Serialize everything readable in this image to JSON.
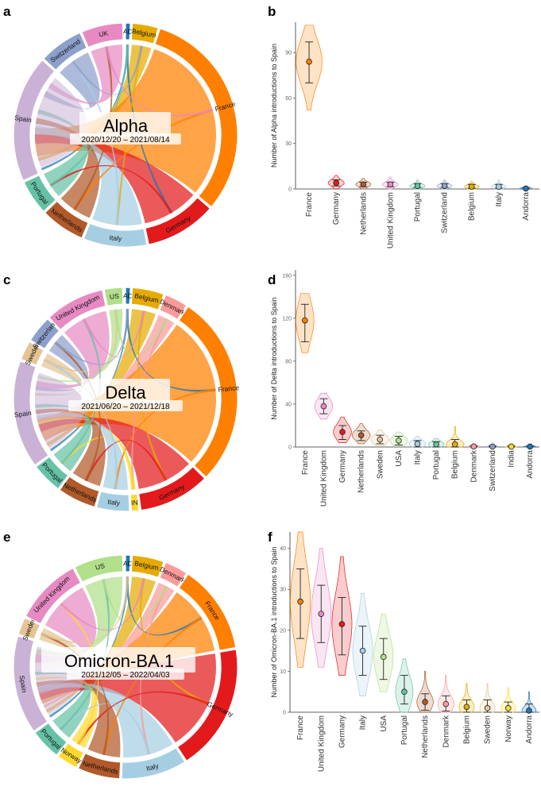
{
  "colors": {
    "France": "#ff7f00",
    "Germany": "#e31a1c",
    "Italy": "#a6cee3",
    "Netherlands": "#b15928",
    "Portugal": "#66c2a5",
    "Spain": "#cab2d6",
    "Switzerland": "#8da0cb",
    "UK": "#e78ac3",
    "United Kingdom": "#e78ac3",
    "Andorra": "#1f78b4",
    "Belgium": "#e6ab02",
    "USA": "#b2df8a",
    "Sweden": "#e5c494",
    "Denmark": "#fb9a99",
    "India": "#ffd92f",
    "Norway": "#ffd92f"
  },
  "chart_data": [
    {
      "panel": "a",
      "type": "chord",
      "variant": "Alpha",
      "date_range": "2020/12/20 – 2021/08/14",
      "segments": [
        {
          "label": "AD",
          "key": "Andorra",
          "start": 0,
          "end": 2.5
        },
        {
          "label": "Belgium",
          "key": "Belgium",
          "start": 3.5,
          "end": 17
        },
        {
          "label": "France",
          "key": "France",
          "start": 18,
          "end": 130
        },
        {
          "label": "Germany",
          "key": "Germany",
          "start": 131,
          "end": 168
        },
        {
          "label": "Italy",
          "key": "Italy",
          "start": 169,
          "end": 202
        },
        {
          "label": "Netherlands",
          "key": "Netherlands",
          "start": 203,
          "end": 226
        },
        {
          "label": "Portugal",
          "key": "Portugal",
          "start": 227,
          "end": 245
        },
        {
          "label": "Spain",
          "key": "Spain",
          "start": 246,
          "end": 312
        },
        {
          "label": "Switzerland",
          "key": "Switzerland",
          "start": 313,
          "end": 336
        },
        {
          "label": "UK",
          "key": "UK",
          "start": 337,
          "end": 358.5
        }
      ]
    },
    {
      "panel": "b",
      "type": "violin",
      "ylabel": "Number of Alpha introductions to Spain",
      "ylim": [
        0,
        110
      ],
      "yticks": [
        0,
        30,
        60,
        90
      ],
      "categories": [
        "France",
        "Germany",
        "Netherlands",
        "United Kingdom",
        "Portugal",
        "Switzerland",
        "Belgium",
        "Italy",
        "Andorra"
      ],
      "median": [
        84,
        4,
        3,
        3,
        2,
        2,
        1.5,
        1.5,
        0.3
      ],
      "lower": [
        70,
        2,
        1.5,
        1.5,
        1,
        1,
        0.5,
        0.5,
        0
      ],
      "upper": [
        97,
        6,
        4.5,
        4.5,
        3.5,
        3.5,
        3,
        3,
        1
      ],
      "dist_min": [
        52,
        0,
        0,
        0,
        0,
        0,
        0,
        0,
        0
      ],
      "dist_max": [
        108,
        9,
        7,
        8,
        6,
        6,
        5,
        6,
        2
      ]
    },
    {
      "panel": "c",
      "type": "chord",
      "variant": "Delta",
      "date_range": "2021/06/20 – 2021/12/18",
      "segments": [
        {
          "label": "AD",
          "key": "Andorra",
          "start": 0,
          "end": 2.5
        },
        {
          "label": "Belgium",
          "key": "Belgium",
          "start": 3.5,
          "end": 20
        },
        {
          "label": "Denmark",
          "key": "Denmark",
          "start": 21,
          "end": 33
        },
        {
          "label": "France",
          "key": "France",
          "start": 34,
          "end": 134
        },
        {
          "label": "Germany",
          "key": "Germany",
          "start": 135,
          "end": 172
        },
        {
          "label": "IN",
          "key": "India",
          "start": 173,
          "end": 177
        },
        {
          "label": "Italy",
          "key": "Italy",
          "start": 178,
          "end": 195
        },
        {
          "label": "Netherlands",
          "key": "Netherlands",
          "start": 196,
          "end": 216
        },
        {
          "label": "Portugal",
          "key": "Portugal",
          "start": 217,
          "end": 233
        },
        {
          "label": "Spain",
          "key": "Spain",
          "start": 234,
          "end": 290
        },
        {
          "label": "Sweden",
          "key": "Sweden",
          "start": 291,
          "end": 301
        },
        {
          "label": "Switzerland",
          "key": "Switzerland",
          "start": 302,
          "end": 316
        },
        {
          "label": "United Kingdom",
          "key": "United Kingdom",
          "start": 317,
          "end": 348
        },
        {
          "label": "US",
          "key": "USA",
          "start": 349,
          "end": 358.5
        }
      ]
    },
    {
      "panel": "d",
      "type": "violin",
      "ylabel": "Number of Delta introductions to Spain",
      "ylim": [
        0,
        165
      ],
      "yticks": [
        0,
        40,
        80,
        120,
        160
      ],
      "categories": [
        "France",
        "United Kingdom",
        "Germany",
        "Netherlands",
        "Sweden",
        "USA",
        "Italy",
        "Portugal",
        "Belgium",
        "Denmark",
        "Switzerland",
        "India",
        "Andorra"
      ],
      "median": [
        118,
        38,
        14,
        11,
        7,
        6,
        3,
        2.5,
        2.5,
        0.5,
        0.4,
        0.4,
        0.4
      ],
      "lower": [
        98,
        31,
        7,
        6,
        3,
        2,
        0,
        0,
        0,
        0,
        0,
        0,
        0
      ],
      "upper": [
        133,
        45,
        20,
        15,
        11,
        10,
        6,
        5,
        7,
        1,
        1,
        1,
        1
      ],
      "dist_min": [
        88,
        26,
        4,
        3,
        1,
        1,
        0,
        0,
        0,
        0,
        0,
        0,
        0
      ],
      "dist_max": [
        143,
        50,
        28,
        22,
        16,
        14,
        10,
        8,
        19,
        2,
        2,
        2,
        2
      ]
    },
    {
      "panel": "e",
      "type": "chord",
      "variant": "Omicron-BA.1",
      "date_range": "2021/12/05 – 2022/04/03",
      "segments": [
        {
          "label": "AD",
          "key": "Andorra",
          "start": 0,
          "end": 2.5
        },
        {
          "label": "Belgium",
          "key": "Belgium",
          "start": 3.5,
          "end": 20
        },
        {
          "label": "Denmark",
          "key": "Denmark",
          "start": 21,
          "end": 33
        },
        {
          "label": "France",
          "key": "France",
          "start": 34,
          "end": 80
        },
        {
          "label": "Germany",
          "key": "Germany",
          "start": 81,
          "end": 147
        },
        {
          "label": "Italy",
          "key": "Italy",
          "start": 148,
          "end": 182
        },
        {
          "label": "Netherlands",
          "key": "Netherlands",
          "start": 183,
          "end": 205
        },
        {
          "label": "Norway",
          "key": "Norway",
          "start": 206,
          "end": 217
        },
        {
          "label": "Portugal",
          "key": "Portugal",
          "start": 218,
          "end": 234
        },
        {
          "label": "Spain",
          "key": "Spain",
          "start": 235,
          "end": 286
        },
        {
          "label": "Sweden",
          "key": "Sweden",
          "start": 287,
          "end": 296
        },
        {
          "label": "United Kingdom",
          "key": "United Kingdom",
          "start": 297,
          "end": 332
        },
        {
          "label": "US",
          "key": "USA",
          "start": 333,
          "end": 358.5
        }
      ]
    },
    {
      "panel": "f",
      "type": "violin",
      "ylabel": "Number of Omicron-BA.1 introductions to Spain",
      "ylim": [
        0,
        44
      ],
      "yticks": [
        0,
        10,
        20,
        30,
        40
      ],
      "categories": [
        "France",
        "United Kingdom",
        "Germany",
        "Italy",
        "USA",
        "Portugal",
        "Netherlands",
        "Denmark",
        "Belgium",
        "Sweden",
        "Norway",
        "Andorra"
      ],
      "median": [
        27,
        24,
        21.5,
        15,
        13.5,
        5,
        2.5,
        2,
        1.3,
        1,
        1,
        0.4
      ],
      "lower": [
        18,
        17,
        14,
        9,
        8,
        2,
        0.5,
        0.3,
        0,
        0,
        0,
        0
      ],
      "upper": [
        35,
        31,
        28,
        21,
        18,
        9,
        4.5,
        4,
        3,
        3,
        2.5,
        2
      ],
      "dist_min": [
        11,
        11,
        9,
        4,
        5,
        0,
        0,
        0,
        0,
        0,
        0,
        0
      ],
      "dist_max": [
        44,
        40,
        38,
        29,
        24,
        13,
        10,
        9,
        7,
        7,
        6,
        5
      ]
    }
  ]
}
